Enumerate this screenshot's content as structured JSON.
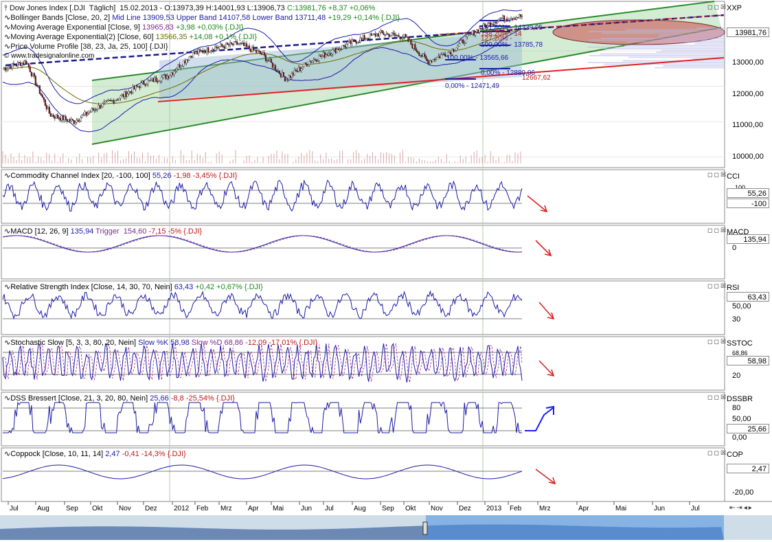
{
  "main": {
    "price_title": "Dow Jones Index [.DJI  Täglich]  15.02.2013 - O:13973,39 H:14001,93 L:13906,73",
    "price_change": "C:13981,76 +8,37 +0,06%",
    "bollinger": "Bollinger Bands [Close, 20, 2]",
    "bollinger_values": "Mid Line 13909,53 Upper Band 14107,58 Lower Band 13711,48",
    "bollinger_change": "+19,29 +0,14% {.DJI}",
    "ema9": "Moving Average Exponential [Close, 9]",
    "ema9_value": "13965,83",
    "ema9_change": "+3,98 +0,03% {.DJI}",
    "ema60": "Moving Average Exponential(2) [Close, 60]",
    "ema60_value": "13566,35",
    "ema60_change": "+14,08 +0,1% {.DJI}",
    "pvp": "Price Volume Profile [38, 23, Ja, 25, 100] {.DJI}",
    "watermark": "© www.tradesignalonline.com",
    "axis_name": "XXP",
    "current_price": "13981,76",
    "y_ticks": [
      "13000,00",
      "12000,00",
      "11000,00",
      "10000,00"
    ],
    "fib_labels": [
      "161,80% - 14339,95",
      "138,20% - 14",
      "127,20% -",
      "100,00% - 13785,78",
      "100,00% - 13565,66",
      "0,00% - 12889,06",
      "12667,62",
      "0,00% - 12471,49"
    ]
  },
  "indicators": [
    {
      "id": "cci",
      "title": "Commodity Channel Index [20, -100, 100]",
      "value": "55,26",
      "change": "-1,98 -3,45% {.DJI}",
      "axis": "CCI",
      "boxes": [
        "55,26",
        "-100"
      ],
      "labels": [
        "100"
      ],
      "arrow": "down"
    },
    {
      "id": "macd",
      "title": "MACD [12, 26, 9]",
      "value": "135,94",
      "trigger": "Trigger  154,60",
      "change": "-7,15 -5% {.DJI}",
      "axis": "MACD",
      "boxes": [
        "135,94"
      ],
      "labels": [
        "0"
      ],
      "arrow": "down"
    },
    {
      "id": "rsi",
      "title": "Relative Strength Index [Close, 14, 30, 70, Nein]",
      "value": "63,43",
      "change": "+0,42 +0,67% {.DJI}",
      "axis": "RSI",
      "boxes": [
        "63,43"
      ],
      "labels": [
        "50,00",
        "30"
      ],
      "arrow": "down"
    },
    {
      "id": "stoch",
      "title": "Stochastic Slow [5, 3, 3, 80, 20, Nein]",
      "value": "Slow %K 58,98",
      "trigger": "Slow %D 68,86",
      "change": "-12,09 -17,01% {.DJI}",
      "axis": "SSTOC",
      "boxes": [
        "58,98"
      ],
      "labels": [
        "68,86",
        "20"
      ],
      "arrow": "down"
    },
    {
      "id": "dss",
      "title": "DSS Bressert [Close, 21, 3, 20, 80, Nein]",
      "value": "25,66",
      "change": "-8,8 -25,54% {.DJI}",
      "axis": "DSSBR",
      "boxes": [
        "25,66"
      ],
      "labels": [
        "80",
        "50,00",
        "0,00"
      ],
      "arrow": "up"
    },
    {
      "id": "cop",
      "title": "Coppock [Close, 10, 11, 14]",
      "value": "2,47",
      "change": "-0,41 -14,3% {.DJI}",
      "axis": "COP",
      "boxes": [
        "2,47"
      ],
      "labels": [
        "-20,00"
      ],
      "arrow": "down"
    }
  ],
  "x_axis_months": [
    "Jul",
    "Aug",
    "Sep",
    "Okt",
    "Nov",
    "Dez",
    "2012",
    "Feb",
    "Mrz",
    "Apr",
    "Mai",
    "Jun",
    "Jul",
    "Aug",
    "Sep",
    "Okt",
    "Nov",
    "Dez",
    "2013",
    "Feb",
    "Mrz",
    "Apr",
    "Mai",
    "Jun",
    "Jul"
  ],
  "colors": {
    "price": "#1a1aa8",
    "bollinger": "#1a1aa8",
    "ema60": "#6b6b00",
    "channel": "#2a8a2a",
    "support": "#e02020",
    "fib": "#1a1aa8",
    "annotation": "#e02020",
    "annotation_up": "#1a1aff",
    "panel_bg": "#ffffff",
    "scrollbar": "#cfdde9"
  },
  "chart_data": {
    "type": "line",
    "series": [
      {
        "name": "Dow Jones Index",
        "values": [
          12500,
          12700,
          11200,
          11000,
          11400,
          11700,
          12100,
          12300,
          12900,
          13100,
          13200,
          12900,
          12200,
          12700,
          13000,
          13300,
          13500,
          13400,
          12700,
          13000,
          13550,
          13900,
          13981
        ]
      }
    ],
    "ylim": [
      9700,
      14400
    ],
    "y_ticks": [
      10000,
      11000,
      12000,
      13000
    ]
  }
}
